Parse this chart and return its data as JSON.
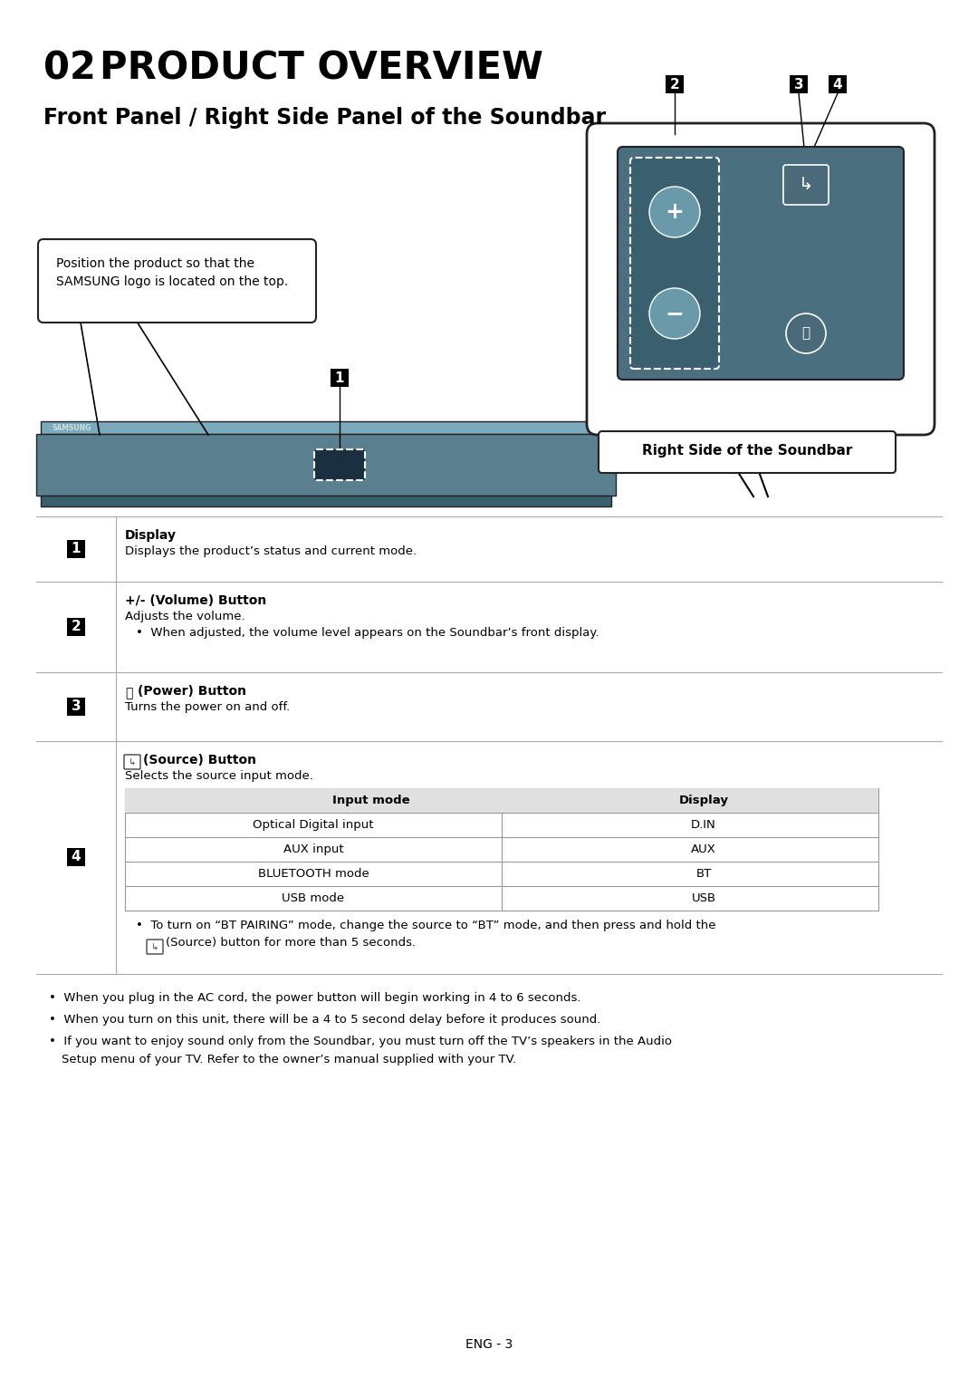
{
  "title_num": "02",
  "title_text": "PRODUCT OVERVIEW",
  "subtitle": "Front Panel / Right Side Panel of the Soundbar",
  "bg_color": "#ffffff",
  "soundbar_body_color": "#5a8090",
  "soundbar_top_color": "#7aaabb",
  "soundbar_bottom_color": "#3a6070",
  "soundbar_front_color": "#4a7080",
  "panel_bg": "#4a7080",
  "panel_outer_bg": "#e8e8e8",
  "note_text_line1": "Position the product so that the",
  "note_text_line2": "SAMSUNG logo is located on the top.",
  "right_panel_label": "Right Side of the Soundbar",
  "items": [
    {
      "num": "1",
      "title": "Display",
      "desc": "Displays the product’s status and current mode.",
      "bullets": [],
      "has_table": false
    },
    {
      "num": "2",
      "title": "+/- (Volume) Button",
      "title_bold": true,
      "desc": "Adjusts the volume.",
      "bullets": [
        "When adjusted, the volume level appears on the Soundbar’s front display."
      ],
      "has_table": false
    },
    {
      "num": "3",
      "title": "(Power) Button",
      "title_bold": true,
      "desc": "Turns the power on and off.",
      "bullets": [],
      "has_table": false
    },
    {
      "num": "4",
      "title": "(Source) Button",
      "title_bold": true,
      "desc": "Selects the source input mode.",
      "bullets": [],
      "has_table": true,
      "table_headers": [
        "Input mode",
        "Display"
      ],
      "table_rows": [
        [
          "Optical Digital input",
          "D.IN"
        ],
        [
          "AUX input",
          "AUX"
        ],
        [
          "BLUETOOTH mode",
          "BT"
        ],
        [
          "USB mode",
          "USB"
        ]
      ],
      "extra_note_line1": "To turn on “BT PAIRING” mode, change the source to “BT” mode, and then press and hold the",
      "extra_note_line2": "(Source) button for more than 5 seconds."
    }
  ],
  "footer_bullets": [
    "When you plug in the AC cord, the power button will begin working in 4 to 6 seconds.",
    "When you turn on this unit, there will be a 4 to 5 second delay before it produces sound.",
    [
      "If you want to enjoy sound only from the Soundbar, you must turn off the TV’s speakers in the Audio",
      "Setup menu of your TV. Refer to the owner’s manual supplied with your TV."
    ]
  ],
  "page_num": "ENG - 3"
}
